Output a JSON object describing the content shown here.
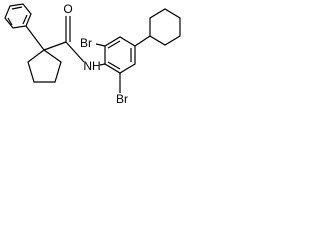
{
  "atom_labels": [
    "O",
    "NH",
    "Br",
    "Br"
  ]
}
